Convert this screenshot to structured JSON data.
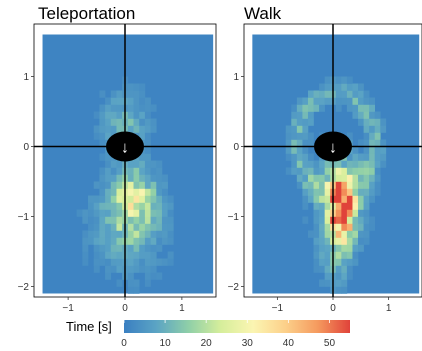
{
  "chart_data": {
    "type": "heatmap",
    "colorbar": {
      "title": "Time [s]",
      "ticks": [
        0,
        10,
        20,
        30,
        40,
        50
      ],
      "range": [
        0,
        55
      ],
      "colors": [
        "#3a7fc2",
        "#5ba4c4",
        "#8fcfa8",
        "#d6ee9b",
        "#fbf5b2",
        "#fcd08a",
        "#f59a5e",
        "#e0433a"
      ],
      "placement": "bottom"
    },
    "panels": [
      {
        "title": "Teleportation",
        "xlim": [
          -1.6,
          1.6
        ],
        "ylim": [
          -2.15,
          1.75
        ],
        "x_ticks": [
          -1,
          0,
          1
        ],
        "y_ticks": [
          -2,
          -1,
          0,
          1
        ],
        "background_value": 1,
        "bin_size": 0.1,
        "hotspots": [
          {
            "x": 0.15,
            "y": -0.75,
            "sx": 0.25,
            "sy": 0.3,
            "peak": 20
          },
          {
            "x": 0.0,
            "y": 0.35,
            "sx": 0.3,
            "sy": 0.3,
            "peak": 9
          },
          {
            "x": 0.05,
            "y": -1.15,
            "sx": 0.45,
            "sy": 0.45,
            "peak": 10
          }
        ],
        "marker": {
          "x": 0,
          "y": 0,
          "label": "↓"
        }
      },
      {
        "title": "Walk",
        "xlim": [
          -1.6,
          1.6
        ],
        "ylim": [
          -2.15,
          1.75
        ],
        "x_ticks": [
          -1,
          0,
          1
        ],
        "y_ticks": [
          -2,
          -1,
          0,
          1
        ],
        "background_value": 1,
        "bin_size": 0.1,
        "hotspots": [
          {
            "x": 0.15,
            "y": -0.9,
            "sx": 0.15,
            "sy": 0.3,
            "peak": 48
          },
          {
            "x": 0.12,
            "y": -0.7,
            "sx": 0.3,
            "sy": 0.45,
            "peak": 14
          },
          {
            "x": 0.05,
            "y": -1.5,
            "sx": 0.2,
            "sy": 0.35,
            "peak": 9
          }
        ],
        "ring": {
          "cx": 0.05,
          "cy": 0.05,
          "rx": 0.7,
          "ry": 0.72,
          "width": 0.12,
          "peak": 9
        },
        "marker": {
          "x": 0,
          "y": 0,
          "label": "↓"
        }
      }
    ]
  }
}
